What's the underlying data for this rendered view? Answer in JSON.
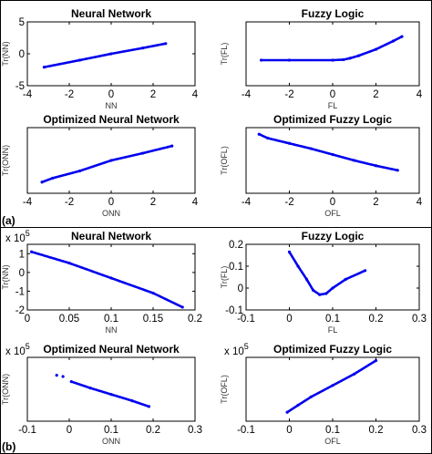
{
  "panels": [
    {
      "label": "(a)"
    },
    {
      "label": "(b)"
    }
  ],
  "chart_data": [
    {
      "type": "scatter",
      "panel": "a",
      "title": "Neural Network",
      "xlabel": "NN",
      "ylabel": "Tr(NN)",
      "xlim": [
        -4,
        4
      ],
      "ylim": [
        -5,
        5
      ],
      "xticks": [
        "-4",
        "-2",
        "0",
        "2",
        "4"
      ],
      "yticks": [
        "-5",
        "0",
        "5"
      ],
      "exponent": "",
      "grid": false,
      "series": [
        {
          "color": "#0000ee",
          "kind": "line",
          "points": [
            [
              -3.2,
              -2.1
            ],
            [
              -1.5,
              -1.0
            ],
            [
              0,
              0.0
            ],
            [
              1.5,
              0.9
            ],
            [
              2.6,
              1.6
            ]
          ]
        }
      ]
    },
    {
      "type": "scatter",
      "panel": "a",
      "title": "Fuzzy Logic",
      "xlabel": "FL",
      "ylabel": "Tr(FL)",
      "xlim": [
        -4,
        4
      ],
      "ylim": [
        -0.5,
        0.5
      ],
      "xticks": [
        "-4",
        "-2",
        "0",
        "2",
        "4"
      ],
      "yticks": [],
      "exponent": "",
      "grid": false,
      "series": [
        {
          "color": "#0000ee",
          "kind": "line",
          "points": [
            [
              -3.3,
              -0.1
            ],
            [
              -2,
              -0.1
            ],
            [
              0,
              -0.1
            ],
            [
              0.5,
              -0.092
            ],
            [
              0.8,
              -0.07
            ],
            [
              1.2,
              -0.03
            ],
            [
              2,
              0.07
            ],
            [
              2.8,
              0.2
            ],
            [
              3.2,
              0.27
            ]
          ]
        }
      ]
    },
    {
      "type": "scatter",
      "panel": "a",
      "title": "Optimized Neural Network",
      "xlabel": "ONN",
      "ylabel": "Tr(ONN)",
      "xlim": [
        -4,
        4
      ],
      "ylim": [
        -5,
        5
      ],
      "xticks": [
        "-4",
        "-2",
        "0",
        "2",
        "4"
      ],
      "yticks": [],
      "exponent": "",
      "grid": false,
      "series": [
        {
          "color": "#0000ee",
          "kind": "line",
          "points": [
            [
              -3.3,
              -3.3
            ],
            [
              -2.8,
              -2.7
            ],
            [
              -1.5,
              -1.6
            ],
            [
              0,
              0.0
            ],
            [
              1.5,
              1.1
            ],
            [
              2.9,
              2.2
            ]
          ]
        }
      ]
    },
    {
      "type": "scatter",
      "panel": "a",
      "title": "Optimized Fuzzy Logic",
      "xlabel": "OFL",
      "ylabel": "Tr(OFL)",
      "xlim": [
        -4,
        4
      ],
      "ylim": [
        -5,
        5
      ],
      "xticks": [
        "-4",
        "-2",
        "0",
        "2",
        "4"
      ],
      "yticks": [],
      "exponent": "",
      "grid": false,
      "series": [
        {
          "color": "#0000ee",
          "kind": "line",
          "points": [
            [
              -3.4,
              4.0
            ],
            [
              -3.0,
              3.4
            ],
            [
              -2.0,
              2.6
            ],
            [
              -1.0,
              1.8
            ],
            [
              0,
              0.9
            ],
            [
              1.0,
              0.0
            ],
            [
              2.0,
              -0.8
            ],
            [
              3.0,
              -1.5
            ]
          ]
        }
      ]
    },
    {
      "type": "scatter",
      "panel": "b",
      "title": "Neural Network",
      "xlabel": "NN",
      "ylabel": "Tr(NN)",
      "xlim": [
        0,
        0.2
      ],
      "ylim": [
        -2,
        1.5
      ],
      "xticks": [
        "0",
        "0.05",
        "0.1",
        "0.15",
        "0.2"
      ],
      "yticks": [
        "-2",
        "-1",
        "0",
        "1"
      ],
      "exponent": "5",
      "grid": false,
      "series": [
        {
          "color": "#0000ee",
          "kind": "line",
          "points": [
            [
              0.005,
              1.1
            ],
            [
              0.05,
              0.5
            ],
            [
              0.1,
              -0.3
            ],
            [
              0.15,
              -1.1
            ],
            [
              0.185,
              -1.85
            ]
          ]
        }
      ]
    },
    {
      "type": "scatter",
      "panel": "b",
      "title": "Fuzzy Logic",
      "xlabel": "FL",
      "ylabel": "Tr(FL)",
      "xlim": [
        -0.1,
        0.3
      ],
      "ylim": [
        -0.1,
        0.2
      ],
      "xticks": [
        "-0.1",
        "0",
        "0.1",
        "0.2",
        "0.3"
      ],
      "yticks": [
        "-0.1",
        "0",
        "0.1",
        "0.2"
      ],
      "exponent": "",
      "grid": false,
      "series": [
        {
          "color": "#0000ee",
          "kind": "line",
          "points": [
            [
              0,
              0.165
            ],
            [
              0.02,
              0.1
            ],
            [
              0.04,
              0.04
            ],
            [
              0.055,
              -0.01
            ],
            [
              0.07,
              -0.03
            ],
            [
              0.085,
              -0.025
            ],
            [
              0.1,
              0.0
            ],
            [
              0.13,
              0.04
            ],
            [
              0.175,
              0.08
            ]
          ]
        }
      ]
    },
    {
      "type": "scatter",
      "panel": "b",
      "title": "Optimized Neural Network",
      "xlabel": "ONN",
      "ylabel": "Tr(ONN)",
      "xlim": [
        -0.1,
        0.3
      ],
      "ylim": [
        -5,
        5
      ],
      "xticks": [
        "-0.1",
        "0",
        "0.1",
        "0.2",
        "0.3"
      ],
      "yticks": [],
      "exponent": "5",
      "grid": false,
      "series": [
        {
          "color": "#0000ee",
          "kind": "scatter",
          "points": [
            [
              -0.03,
              2.2
            ],
            [
              -0.015,
              2.0
            ]
          ]
        },
        {
          "color": "#0000ee",
          "kind": "line",
          "points": [
            [
              0.005,
              1.2
            ],
            [
              0.05,
              0.2
            ],
            [
              0.1,
              -0.8
            ],
            [
              0.15,
              -1.8
            ],
            [
              0.19,
              -2.7
            ]
          ]
        }
      ]
    },
    {
      "type": "scatter",
      "panel": "b",
      "title": "Optimized Fuzzy Logic",
      "xlabel": "OFL",
      "ylabel": "Tr(OFL)",
      "xlim": [
        -0.1,
        0.3
      ],
      "ylim": [
        -5,
        5
      ],
      "xticks": [
        "-0.1",
        "0",
        "0.1",
        "0.2",
        "0.3"
      ],
      "yticks": [],
      "exponent": "5",
      "grid": false,
      "series": [
        {
          "color": "#0000ee",
          "kind": "line",
          "points": [
            [
              -0.005,
              -3.6
            ],
            [
              0.02,
              -2.5
            ],
            [
              0.05,
              -1.2
            ],
            [
              0.1,
              0.6
            ],
            [
              0.15,
              2.4
            ],
            [
              0.2,
              4.5
            ]
          ]
        }
      ]
    }
  ]
}
